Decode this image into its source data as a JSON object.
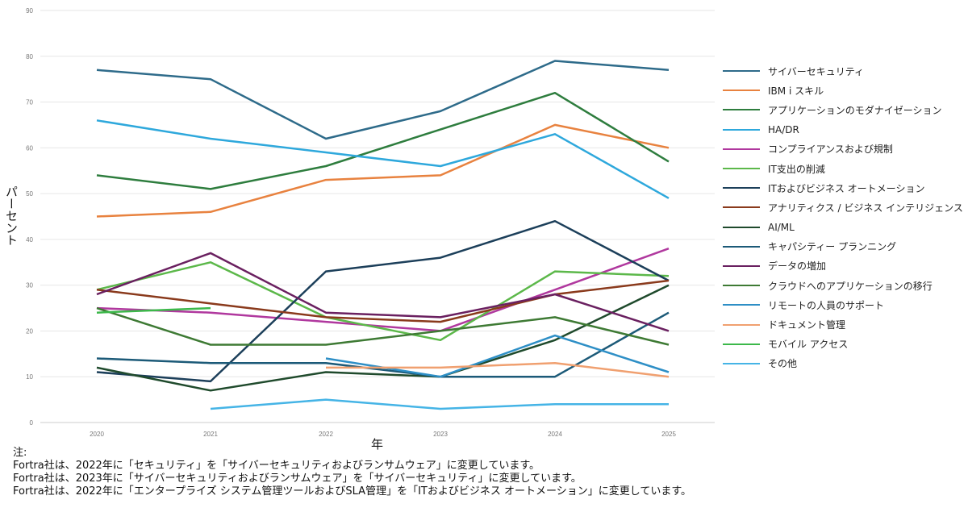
{
  "chart_data": {
    "type": "line",
    "ylabel": "パーセント",
    "xlabel": "年",
    "ylim": [
      0,
      90
    ],
    "yticks": [
      "0",
      "10",
      "20",
      "30",
      "40",
      "50",
      "60",
      "70",
      "80",
      "90"
    ],
    "categories": [
      "2020",
      "2021",
      "2022",
      "2023",
      "2024",
      "2025"
    ],
    "grid": "horizontal",
    "legend_position": "right",
    "series": [
      {
        "name": "サイバーセキュリティ",
        "color": "#2e6b8a",
        "values": [
          77,
          75,
          62,
          68,
          79,
          77
        ]
      },
      {
        "name": "IBM i スキル",
        "color": "#e8823f",
        "values": [
          45,
          46,
          53,
          54,
          65,
          60
        ]
      },
      {
        "name": "アプリケーションのモダナイゼーション",
        "color": "#2e7d3e",
        "values": [
          54,
          51,
          56,
          64,
          72,
          57
        ]
      },
      {
        "name": "HA/DR",
        "color": "#2ea8dc",
        "values": [
          66,
          62,
          59,
          56,
          63,
          49
        ]
      },
      {
        "name": "コンプライアンスおよび規制",
        "color": "#b0389e",
        "values": [
          25,
          24,
          22,
          20,
          29,
          38
        ]
      },
      {
        "name": "IT支出の削減",
        "color": "#5cb84a",
        "values": [
          29,
          35,
          23,
          18,
          33,
          32
        ]
      },
      {
        "name": "ITおよびビジネス オートメーション",
        "color": "#1c3f5a",
        "values": [
          11,
          9,
          33,
          36,
          44,
          31
        ]
      },
      {
        "name": "アナリティクス / ビジネス インテリジェンス",
        "color": "#8a3a1c",
        "values": [
          29,
          26,
          23,
          22,
          28,
          31
        ]
      },
      {
        "name": "AI/ML",
        "color": "#1f4a2c",
        "values": [
          12,
          7,
          11,
          10,
          18,
          30
        ]
      },
      {
        "name": "キャパシティー プランニング",
        "color": "#1c5a78",
        "values": [
          14,
          13,
          13,
          10,
          10,
          24
        ]
      },
      {
        "name": "データの増加",
        "color": "#6a2060",
        "values": [
          28,
          37,
          24,
          23,
          28,
          20
        ]
      },
      {
        "name": "クラウドへのアプリケーションの移行",
        "color": "#3e7a34",
        "values": [
          25,
          17,
          17,
          20,
          23,
          17
        ]
      },
      {
        "name": "リモートの人員のサポート",
        "color": "#2e8fc6",
        "values": [
          null,
          null,
          14,
          10,
          19,
          11
        ]
      },
      {
        "name": "ドキュメント管理",
        "color": "#f0a070",
        "values": [
          null,
          null,
          12,
          12,
          13,
          10
        ]
      },
      {
        "name": "モバイル アクセス",
        "color": "#3cb84a",
        "values": [
          24,
          25,
          null,
          null,
          null,
          null
        ]
      },
      {
        "name": "その他",
        "color": "#45b4e6",
        "values": [
          null,
          3,
          5,
          3,
          4,
          4
        ]
      }
    ]
  },
  "notes": {
    "heading": "注:",
    "lines": [
      "Fortra社は、2022年に「セキュリティ」を「サイバーセキュリティおよびランサムウェア」に変更しています。",
      "Fortra社は、2023年に「サイバーセキュリティおよびランサムウェア」を「サイバーセキュリティ」に変更しています。",
      "Fortra社は、2022年に「エンタープライズ システム管理ツールおよびSLA管理」を「ITおよびビジネス オートメーション」に変更しています。"
    ]
  }
}
